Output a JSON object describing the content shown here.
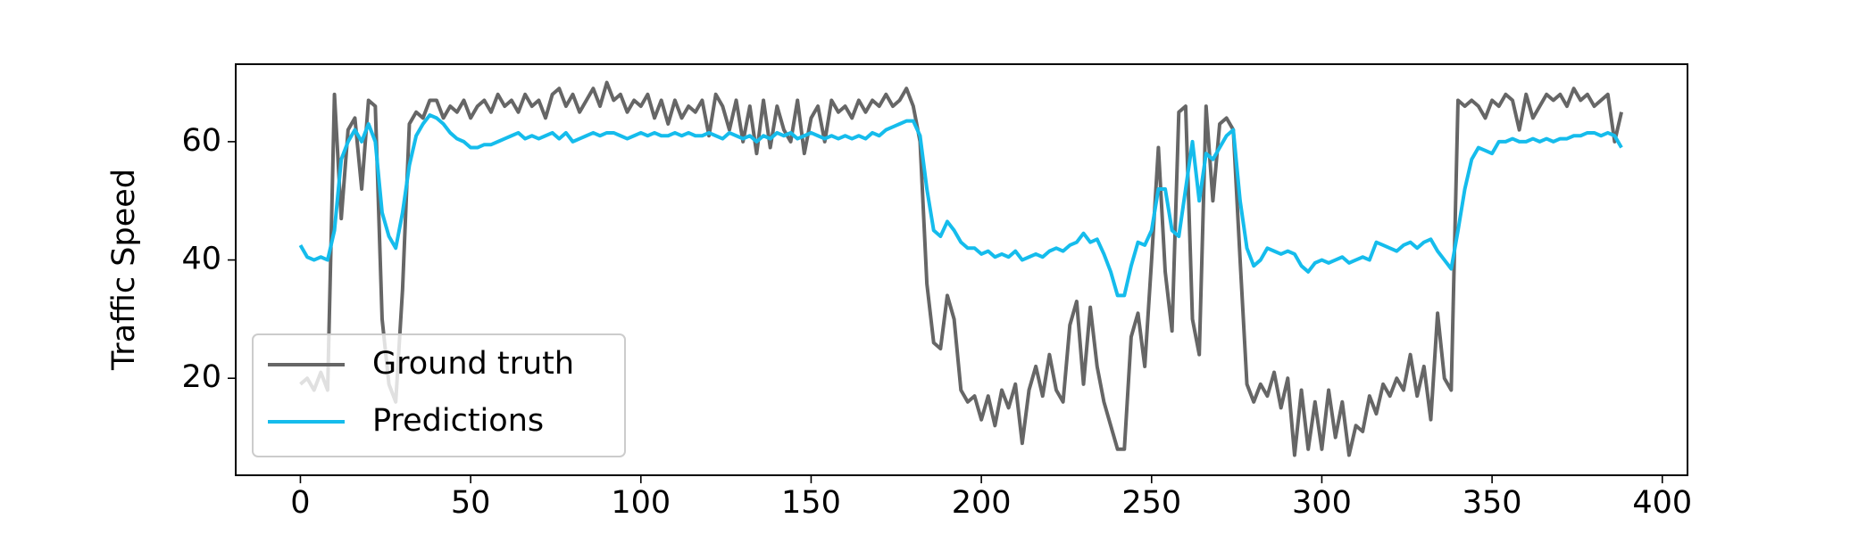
{
  "chart_data": {
    "type": "line",
    "ylabel": "Traffic Speed",
    "x": [
      0,
      2,
      4,
      6,
      8,
      10,
      12,
      14,
      16,
      18,
      20,
      22,
      24,
      26,
      28,
      30,
      32,
      34,
      36,
      38,
      40,
      42,
      44,
      46,
      48,
      50,
      52,
      54,
      56,
      58,
      60,
      62,
      64,
      66,
      68,
      70,
      72,
      74,
      76,
      78,
      80,
      82,
      84,
      86,
      88,
      90,
      92,
      94,
      96,
      98,
      100,
      102,
      104,
      106,
      108,
      110,
      112,
      114,
      116,
      118,
      120,
      122,
      124,
      126,
      128,
      130,
      132,
      134,
      136,
      138,
      140,
      142,
      144,
      146,
      148,
      150,
      152,
      154,
      156,
      158,
      160,
      162,
      164,
      166,
      168,
      170,
      172,
      174,
      176,
      178,
      180,
      182,
      184,
      186,
      188,
      190,
      192,
      194,
      196,
      198,
      200,
      202,
      204,
      206,
      208,
      210,
      212,
      214,
      216,
      218,
      220,
      222,
      224,
      226,
      228,
      230,
      232,
      234,
      236,
      238,
      240,
      242,
      244,
      246,
      248,
      250,
      252,
      254,
      256,
      258,
      260,
      262,
      264,
      266,
      268,
      270,
      272,
      274,
      276,
      278,
      280,
      282,
      284,
      286,
      288,
      290,
      292,
      294,
      296,
      298,
      300,
      302,
      304,
      306,
      308,
      310,
      312,
      314,
      316,
      318,
      320,
      322,
      324,
      326,
      328,
      330,
      332,
      334,
      336,
      338,
      340,
      342,
      344,
      346,
      348,
      350,
      352,
      354,
      356,
      358,
      360,
      362,
      364,
      366,
      368,
      370,
      372,
      374,
      376,
      378,
      380,
      382,
      384,
      386,
      388
    ],
    "series": [
      {
        "name": "Ground truth",
        "color": "#666666",
        "values": [
          19,
          20,
          18,
          21,
          18,
          68,
          47,
          62,
          64,
          52,
          67,
          66,
          30,
          19,
          16,
          35,
          63,
          65,
          64,
          67,
          67,
          64,
          66,
          65,
          67,
          64,
          66,
          67,
          65,
          68,
          66,
          67,
          65,
          68,
          66,
          67,
          64,
          68,
          69,
          66,
          68,
          65,
          67,
          69,
          66,
          70,
          67,
          68,
          65,
          67,
          66,
          68,
          64,
          67,
          63,
          67,
          64,
          66,
          65,
          67,
          61,
          68,
          66,
          62,
          67,
          60,
          66,
          58,
          67,
          59,
          66,
          62,
          60,
          67,
          58,
          64,
          66,
          60,
          67,
          65,
          66,
          64,
          67,
          65,
          67,
          66,
          68,
          66,
          67,
          69,
          66,
          60,
          36,
          26,
          25,
          34,
          30,
          18,
          16,
          17,
          13,
          17,
          12,
          18,
          15,
          19,
          9,
          18,
          22,
          17,
          24,
          18,
          16,
          29,
          33,
          19,
          32,
          22,
          16,
          12,
          8,
          8,
          27,
          31,
          22,
          40,
          59,
          38,
          28,
          65,
          66,
          30,
          24,
          66,
          50,
          63,
          64,
          62,
          40,
          19,
          16,
          19,
          17,
          21,
          15,
          20,
          7,
          18,
          8,
          16,
          8,
          18,
          10,
          16,
          7,
          12,
          11,
          17,
          14,
          19,
          17,
          20,
          18,
          24,
          17,
          22,
          13,
          31,
          20,
          18,
          67,
          66,
          67,
          66,
          64,
          67,
          66,
          68,
          67,
          62,
          68,
          64,
          66,
          68,
          67,
          68,
          66,
          69,
          67,
          68,
          66,
          67,
          68,
          60,
          65
        ]
      },
      {
        "name": "Predictions",
        "color": "#15bcec",
        "values": [
          42.5,
          40.5,
          40,
          40.5,
          40,
          45,
          57,
          60,
          62,
          60,
          63,
          60,
          48,
          44,
          42,
          48,
          56,
          61,
          63,
          64.5,
          64,
          63,
          61.5,
          60.5,
          60,
          59,
          59,
          59.5,
          59.5,
          60,
          60.5,
          61,
          61.5,
          60.5,
          61,
          60.5,
          61,
          61.5,
          60.5,
          61.5,
          60,
          60.5,
          61,
          61.5,
          61,
          61.5,
          61.5,
          61,
          60.5,
          61,
          61.5,
          61,
          61.5,
          61,
          61,
          61.5,
          61,
          61.5,
          61,
          61,
          61.5,
          61,
          60.5,
          61.5,
          61,
          60.5,
          61,
          60,
          61,
          60.5,
          61.5,
          61,
          61.5,
          60.5,
          61,
          61.5,
          61,
          60.5,
          61,
          60.5,
          61,
          60.5,
          61,
          60.5,
          61.5,
          61,
          62,
          62.5,
          63,
          63.5,
          63.5,
          61,
          52,
          45,
          44,
          46.5,
          45,
          43,
          42,
          42,
          41,
          41.5,
          40.5,
          41,
          40.5,
          41.5,
          40,
          40.5,
          41,
          40.5,
          41.5,
          42,
          41.5,
          42.5,
          43,
          44.5,
          43,
          43.5,
          41,
          38,
          34,
          34,
          39,
          43,
          42.5,
          45,
          52,
          52,
          45,
          44,
          52,
          60,
          50,
          58,
          57,
          59,
          61,
          62,
          50,
          42,
          39,
          40,
          42,
          41.5,
          41,
          41.5,
          41,
          39,
          38,
          39.5,
          40,
          39.5,
          40,
          40.5,
          39.5,
          40,
          40.5,
          40,
          43,
          42.5,
          42,
          41.5,
          42.5,
          43,
          42,
          43,
          43.5,
          41.5,
          40,
          38.5,
          45,
          52,
          57,
          59,
          58.5,
          58,
          60,
          60,
          60.5,
          60,
          60,
          60.5,
          60,
          60.5,
          60,
          60.5,
          60.5,
          61,
          61,
          61.5,
          61.5,
          61,
          61.5,
          61,
          59
        ]
      }
    ],
    "xlim": [
      -19,
      407.4
    ],
    "ylim": [
      3.6,
      73.1
    ],
    "xticks": [
      0,
      50,
      100,
      150,
      200,
      250,
      300,
      350,
      400
    ],
    "yticks": [
      20,
      40,
      60
    ],
    "legend": "lower left"
  }
}
